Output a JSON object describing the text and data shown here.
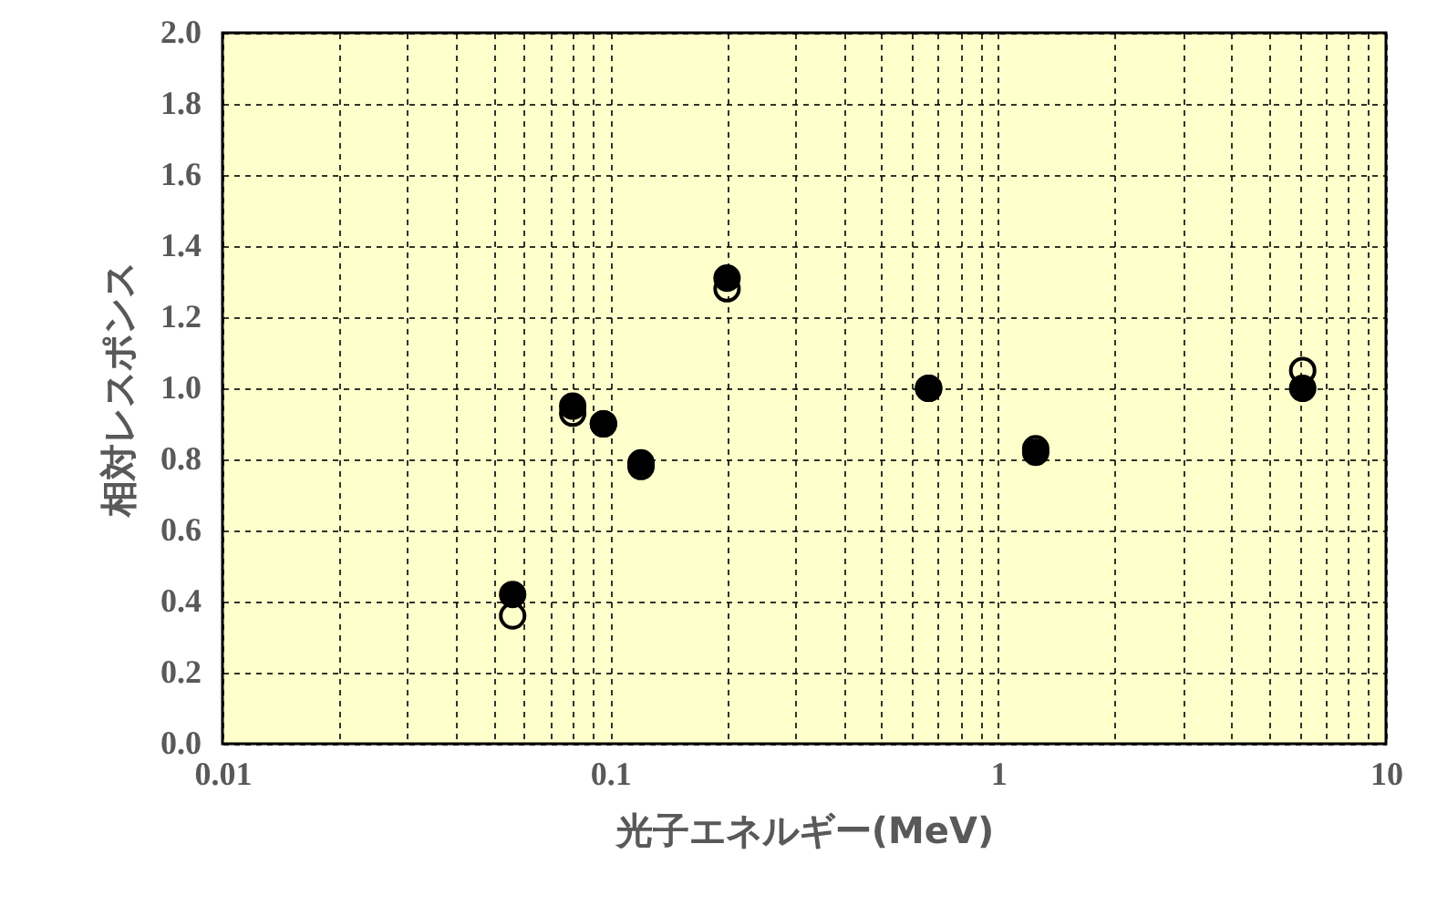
{
  "chart_data": {
    "type": "scatter",
    "xlabel": "光子エネルギー(MeV)",
    "ylabel": "相対レスポンス",
    "log": "x",
    "grid": true,
    "marker": "circle",
    "x": [
      0.056,
      0.08,
      0.096,
      0.12,
      0.2,
      0.662,
      1.25,
      6.1
    ],
    "xlim": [
      0.01,
      10
    ],
    "ylim": [
      0,
      2
    ],
    "xticks": [
      0.01,
      {
        "value": 0.02,
        "label": null
      },
      {
        "value": 0.03,
        "label": null
      },
      {
        "value": 0.04,
        "label": null
      },
      {
        "value": 0.05,
        "label": null
      },
      {
        "value": 0.06,
        "label": null
      },
      {
        "value": 0.07,
        "label": null
      },
      {
        "value": 0.08,
        "label": null
      },
      {
        "value": 0.09,
        "label": null
      },
      0.1,
      {
        "value": 0.2,
        "label": null
      },
      {
        "value": 0.3,
        "label": null
      },
      {
        "value": 0.4,
        "label": null
      },
      {
        "value": 0.5,
        "label": null
      },
      {
        "value": 0.6,
        "label": null
      },
      {
        "value": 0.7,
        "label": null
      },
      {
        "value": 0.8,
        "label": null
      },
      {
        "value": 0.9,
        "label": null
      },
      1,
      {
        "value": 2,
        "label": null
      },
      {
        "value": 3,
        "label": null
      },
      {
        "value": 4,
        "label": null
      },
      {
        "value": 5,
        "label": null
      },
      {
        "value": 6,
        "label": null
      },
      {
        "value": 7,
        "label": null
      },
      {
        "value": 8,
        "label": null
      },
      {
        "value": 9,
        "label": null
      },
      10
    ],
    "yticks": [
      {
        "value": 0,
        "label": "0.0"
      },
      0.2,
      0.4,
      0.6,
      0.8,
      {
        "value": 1,
        "label": "1.0"
      },
      1.2,
      1.4,
      1.6,
      1.8,
      {
        "value": 2,
        "label": "2.0"
      }
    ],
    "series": [
      {
        "color": "#000000",
        "values": [
          0.36,
          0.93,
          0.9,
          0.78,
          1.28,
          1.0,
          0.83,
          1.05
        ]
      },
      {
        "color": "#000000",
        "values": [
          0.42,
          0.95,
          0.9,
          0.79,
          1.31,
          1.0,
          0.82,
          1.0
        ]
      }
    ]
  }
}
